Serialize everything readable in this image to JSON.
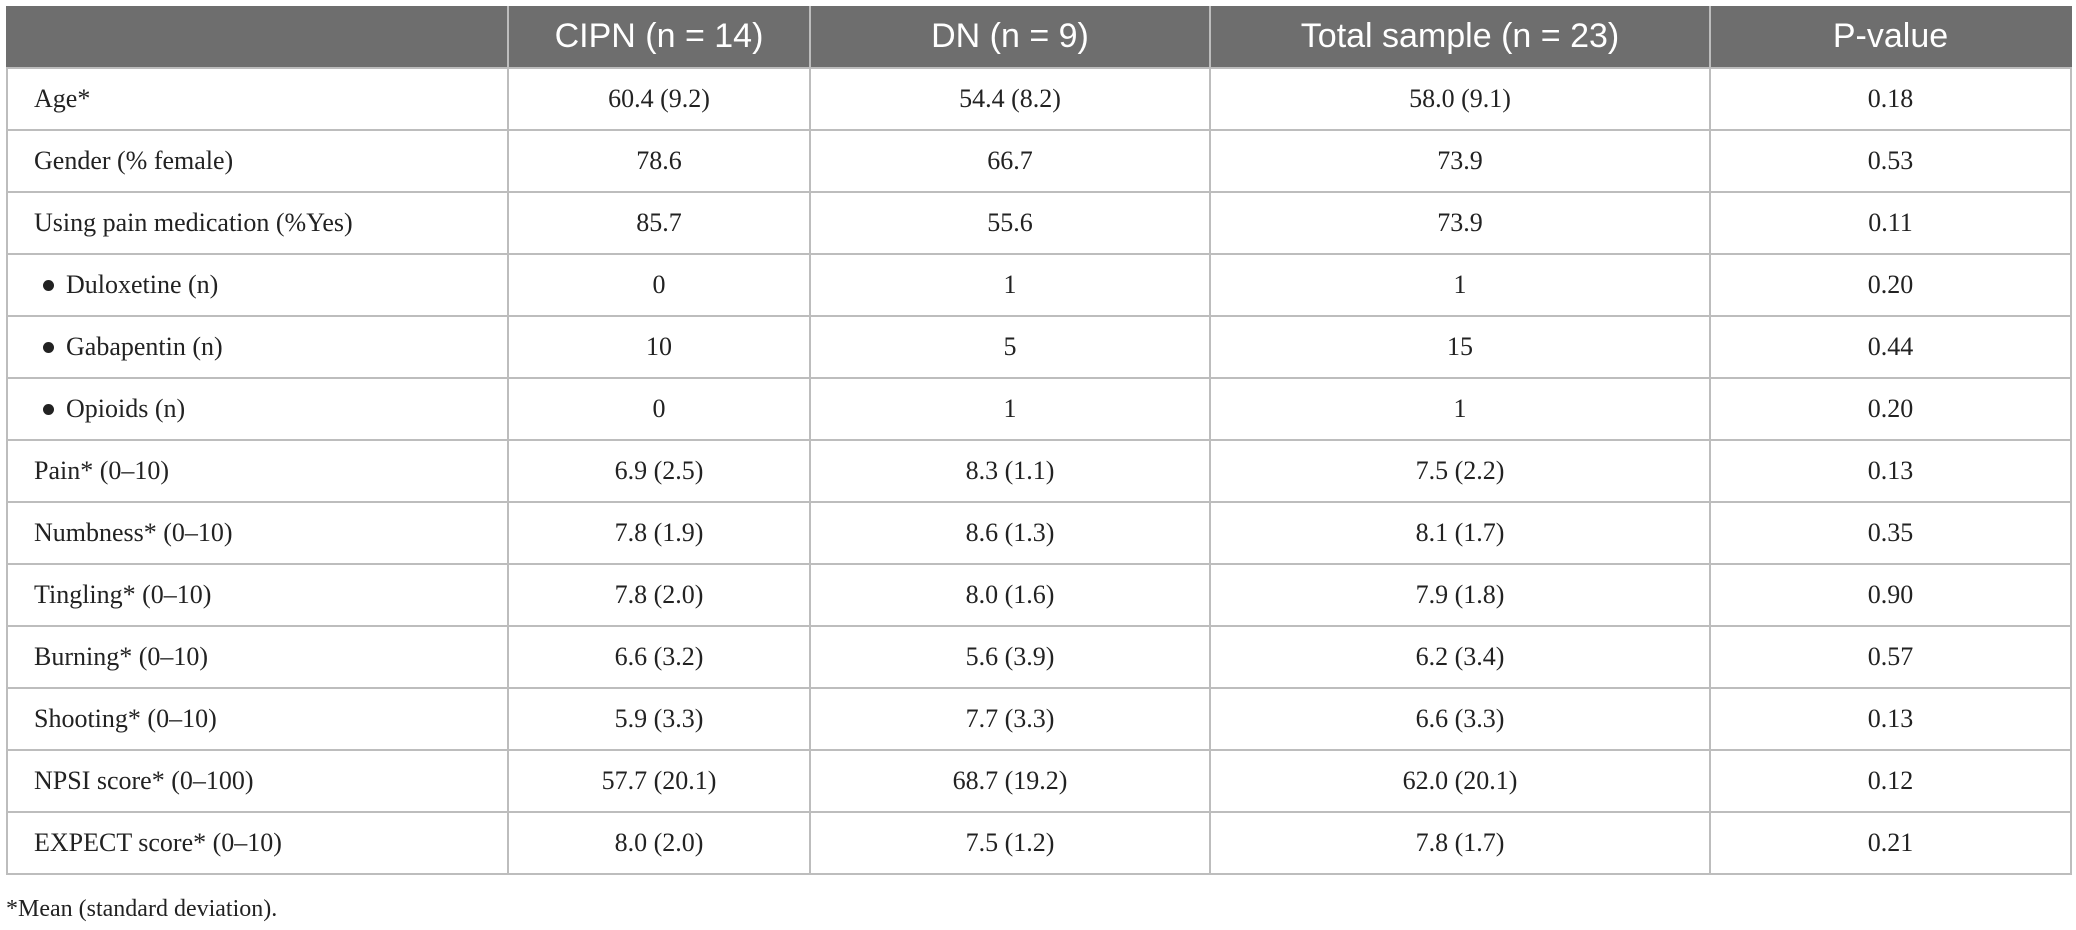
{
  "table": {
    "headers": [
      "",
      "CIPN (n = 14)",
      "DN (n = 9)",
      "Total sample (n = 23)",
      "P-value"
    ],
    "rows": [
      {
        "label": "Age*",
        "sub": false,
        "cipn": "60.4 (9.2)",
        "dn": "54.4 (8.2)",
        "total": "58.0 (9.1)",
        "p": "0.18"
      },
      {
        "label": "Gender (% female)",
        "sub": false,
        "cipn": "78.6",
        "dn": "66.7",
        "total": "73.9",
        "p": "0.53"
      },
      {
        "label": "Using pain medication (%Yes)",
        "sub": false,
        "cipn": "85.7",
        "dn": "55.6",
        "total": "73.9",
        "p": "0.11"
      },
      {
        "label": "Duloxetine (n)",
        "sub": true,
        "cipn": "0",
        "dn": "1",
        "total": "1",
        "p": "0.20"
      },
      {
        "label": "Gabapentin (n)",
        "sub": true,
        "cipn": "10",
        "dn": "5",
        "total": "15",
        "p": "0.44"
      },
      {
        "label": "Opioids (n)",
        "sub": true,
        "cipn": "0",
        "dn": "1",
        "total": "1",
        "p": "0.20"
      },
      {
        "label": "Pain* (0–10)",
        "sub": false,
        "cipn": "6.9 (2.5)",
        "dn": "8.3 (1.1)",
        "total": "7.5 (2.2)",
        "p": "0.13"
      },
      {
        "label": "Numbness* (0–10)",
        "sub": false,
        "cipn": "7.8 (1.9)",
        "dn": "8.6 (1.3)",
        "total": "8.1 (1.7)",
        "p": "0.35"
      },
      {
        "label": "Tingling* (0–10)",
        "sub": false,
        "cipn": "7.8 (2.0)",
        "dn": "8.0 (1.6)",
        "total": "7.9 (1.8)",
        "p": "0.90"
      },
      {
        "label": "Burning* (0–10)",
        "sub": false,
        "cipn": "6.6 (3.2)",
        "dn": "5.6 (3.9)",
        "total": "6.2 (3.4)",
        "p": "0.57"
      },
      {
        "label": "Shooting* (0–10)",
        "sub": false,
        "cipn": "5.9 (3.3)",
        "dn": "7.7 (3.3)",
        "total": "6.6 (3.3)",
        "p": "0.13"
      },
      {
        "label": "NPSI score* (0–100)",
        "sub": false,
        "cipn": "57.7 (20.1)",
        "dn": "68.7 (19.2)",
        "total": "62.0 (20.1)",
        "p": "0.12"
      },
      {
        "label": "EXPECT score* (0–10)",
        "sub": false,
        "cipn": "8.0 (2.0)",
        "dn": "7.5 (1.2)",
        "total": "7.8 (1.7)",
        "p": "0.21"
      }
    ]
  },
  "footnote": "*Mean (standard deviation).",
  "colors": {
    "header_bg": "#6e6e6e",
    "header_text": "#ffffff",
    "grid": "#bdbdbd"
  }
}
